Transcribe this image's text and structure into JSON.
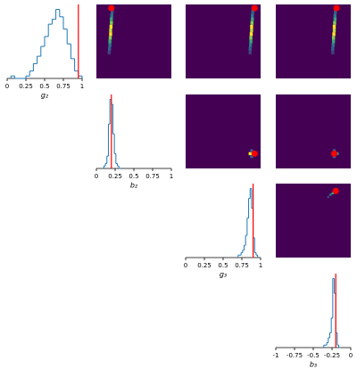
{
  "chart_data": [
    {
      "type": "histogram",
      "xlabel": "g₂",
      "xlim": [
        0,
        1
      ],
      "xticks": [
        0,
        0.25,
        0.5,
        0.75,
        1
      ],
      "ylim": [
        0,
        30
      ],
      "bins": [
        0.05,
        0.1,
        0.15,
        0.2,
        0.25,
        0.3,
        0.35,
        0.4,
        0.45,
        0.5,
        0.55,
        0.6,
        0.65,
        0.7,
        0.75,
        0.8,
        0.85,
        0.9,
        0.95,
        1.0
      ],
      "counts": [
        1,
        0,
        0,
        0,
        1,
        3,
        6,
        9,
        13,
        17,
        22,
        24,
        28,
        25,
        20,
        14,
        8,
        3,
        1
      ],
      "color": "#1f77b4",
      "truth": 0.95,
      "truth_color": "#ff0000"
    },
    {
      "type": "heatmap",
      "xlim": [
        0,
        1
      ],
      "ylim": [
        0,
        1
      ],
      "xbin": 0.04,
      "ybin": 0.05,
      "x": [
        0.17,
        0.175,
        0.18,
        0.18,
        0.185,
        0.19,
        0.19,
        0.195,
        0.2,
        0.2,
        0.205,
        0.21,
        0.21
      ],
      "y": [
        0.35,
        0.4,
        0.45,
        0.5,
        0.55,
        0.6,
        0.65,
        0.7,
        0.75,
        0.8,
        0.85,
        0.9,
        0.95
      ],
      "z": [
        2,
        3,
        4,
        6,
        8,
        10,
        9,
        10,
        8,
        6,
        4,
        3,
        2
      ],
      "background": "#440154",
      "colormap": "viridis",
      "truth": [
        0.2,
        0.95
      ],
      "truth_color": "#ff0000"
    },
    {
      "type": "heatmap",
      "xlim": [
        0,
        1
      ],
      "ylim": [
        0,
        1
      ],
      "xbin": 0.04,
      "ybin": 0.05,
      "x": [
        0.86,
        0.86,
        0.865,
        0.87,
        0.87,
        0.875,
        0.88,
        0.88,
        0.885,
        0.89,
        0.89,
        0.895,
        0.9
      ],
      "y": [
        0.35,
        0.4,
        0.45,
        0.5,
        0.55,
        0.6,
        0.65,
        0.7,
        0.75,
        0.8,
        0.85,
        0.9,
        0.95
      ],
      "z": [
        2,
        3,
        4,
        6,
        8,
        10,
        9,
        10,
        8,
        6,
        4,
        3,
        2
      ],
      "background": "#440154",
      "colormap": "viridis",
      "truth": [
        0.92,
        0.95
      ],
      "truth_color": "#ff0000"
    },
    {
      "type": "heatmap",
      "xlim": [
        -1,
        0
      ],
      "ylim": [
        0,
        1
      ],
      "xbin": 0.04,
      "ybin": 0.05,
      "x": [
        -0.24,
        -0.24,
        -0.235,
        -0.23,
        -0.23,
        -0.225,
        -0.22,
        -0.22,
        -0.215,
        -0.21,
        -0.21,
        -0.205,
        -0.2
      ],
      "y": [
        0.35,
        0.4,
        0.45,
        0.5,
        0.55,
        0.6,
        0.65,
        0.7,
        0.75,
        0.8,
        0.85,
        0.9,
        0.95
      ],
      "z": [
        2,
        3,
        4,
        6,
        8,
        10,
        9,
        10,
        8,
        6,
        4,
        3,
        2
      ],
      "background": "#440154",
      "colormap": "viridis",
      "truth": [
        -0.19,
        0.95
      ],
      "truth_color": "#ff0000"
    },
    {
      "type": "histogram",
      "xlabel": "b₂",
      "xlim": [
        0,
        1
      ],
      "xticks": [
        0,
        0.25,
        0.5,
        0.75,
        1
      ],
      "ylim": [
        0,
        30
      ],
      "bins": [
        0.1,
        0.12,
        0.14,
        0.16,
        0.18,
        0.2,
        0.22,
        0.24,
        0.26,
        0.28,
        0.3,
        0.32
      ],
      "counts": [
        1,
        2,
        5,
        18,
        28,
        26,
        14,
        6,
        2,
        1,
        0
      ],
      "color": "#1f77b4",
      "truth": 0.2,
      "truth_color": "#ff0000"
    },
    {
      "type": "heatmap",
      "xlim": [
        0,
        1
      ],
      "ylim": [
        0,
        1
      ],
      "xbin": 0.04,
      "ybin": 0.04,
      "x": [
        0.86,
        0.9,
        0.88,
        0.88
      ],
      "y": [
        0.2,
        0.2,
        0.24,
        0.16
      ],
      "z": [
        10,
        6,
        3,
        3
      ],
      "background": "#440154",
      "colormap": "viridis",
      "truth": [
        0.92,
        0.2
      ],
      "truth_color": "#ff0000"
    },
    {
      "type": "heatmap",
      "xlim": [
        -1,
        0
      ],
      "ylim": [
        0,
        1
      ],
      "xbin": 0.04,
      "ybin": 0.04,
      "x": [
        -0.22,
        -0.18,
        -0.22,
        -0.22
      ],
      "y": [
        0.2,
        0.2,
        0.24,
        0.16
      ],
      "z": [
        10,
        5,
        3,
        3
      ],
      "background": "#440154",
      "colormap": "viridis",
      "truth": [
        -0.22,
        0.2
      ],
      "truth_color": "#ff0000"
    },
    {
      "type": "histogram",
      "xlabel": "g₃",
      "xlim": [
        0,
        1
      ],
      "xticks": [
        0,
        0.25,
        0.5,
        0.75,
        1
      ],
      "ylim": [
        0,
        30
      ],
      "bins": [
        0.7,
        0.72,
        0.74,
        0.76,
        0.78,
        0.8,
        0.82,
        0.84,
        0.86,
        0.88,
        0.9,
        0.92,
        0.94,
        0.96
      ],
      "counts": [
        1,
        1,
        2,
        3,
        5,
        9,
        16,
        24,
        28,
        20,
        8,
        2,
        1
      ],
      "color": "#1f77b4",
      "truth": 0.9,
      "truth_color": "#ff0000"
    },
    {
      "type": "heatmap",
      "xlim": [
        -1,
        0
      ],
      "ylim": [
        0,
        1
      ],
      "xbin": 0.03,
      "ybin": 0.03,
      "x": [
        -0.3,
        -0.27,
        -0.24,
        -0.21
      ],
      "y": [
        0.82,
        0.85,
        0.87,
        0.89
      ],
      "z": [
        2,
        4,
        6,
        10
      ],
      "background": "#440154",
      "colormap": "viridis",
      "truth": [
        -0.2,
        0.9
      ],
      "truth_color": "#ff0000"
    },
    {
      "type": "histogram",
      "xlabel": "b₃",
      "xlim": [
        -1,
        0
      ],
      "xticks": [
        -1,
        -0.75,
        -0.5,
        -0.25,
        0
      ],
      "ylim": [
        0,
        30
      ],
      "bins": [
        -0.36,
        -0.34,
        -0.32,
        -0.3,
        -0.28,
        -0.26,
        -0.24,
        -0.22,
        -0.2,
        -0.18,
        -0.16,
        -0.14
      ],
      "counts": [
        1,
        1,
        2,
        4,
        6,
        12,
        28,
        22,
        6,
        1,
        0
      ],
      "color": "#1f77b4",
      "truth": -0.2,
      "truth_color": "#ff0000"
    }
  ]
}
